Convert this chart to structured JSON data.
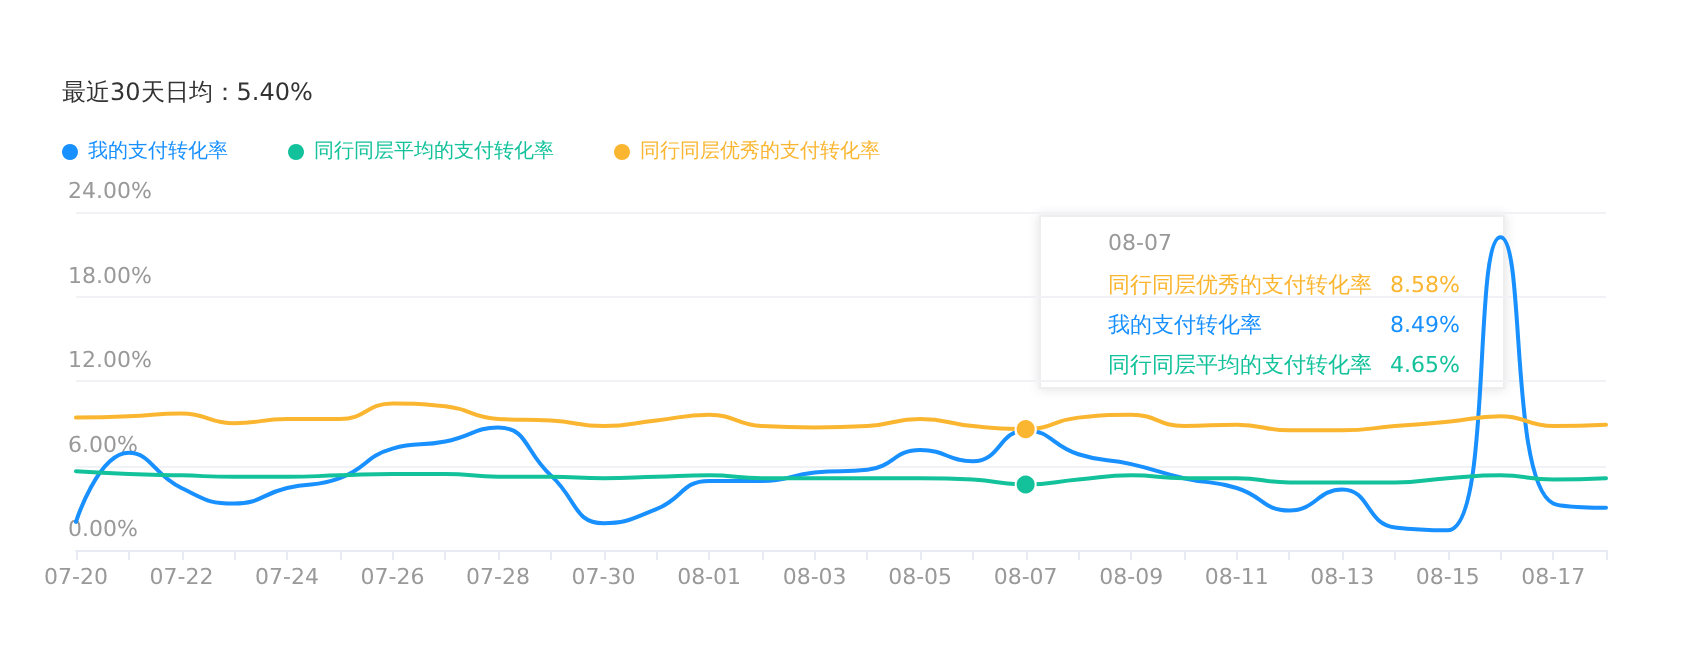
{
  "chart_data": {
    "type": "line",
    "title": "最近30天日均：5.40%",
    "categories": [
      "07-20",
      null,
      "07-22",
      null,
      "07-24",
      null,
      "07-26",
      null,
      "07-28",
      null,
      "07-30",
      null,
      "08-01",
      null,
      "08-03",
      null,
      "08-05",
      null,
      "08-07",
      null,
      "08-09",
      null,
      "08-11",
      null,
      "08-13",
      null,
      "08-15",
      null,
      "08-17",
      null
    ],
    "series": [
      {
        "name": "我的支付转化率",
        "color": "#1890ff",
        "values": [
          2.0,
          6.9,
          4.4,
          3.3,
          4.4,
          5.1,
          7.2,
          7.7,
          8.7,
          5.3,
          1.9,
          2.9,
          4.9,
          4.9,
          5.5,
          5.7,
          7.1,
          6.3,
          8.49,
          6.8,
          6.1,
          5.1,
          4.4,
          2.8,
          4.3,
          1.6,
          1.4,
          22.2,
          3.3,
          3.0
        ]
      },
      {
        "name": "同行同层平均的支付转化率",
        "color": "#13c29b",
        "values": [
          5.6,
          5.4,
          5.3,
          5.2,
          5.2,
          5.3,
          5.4,
          5.4,
          5.2,
          5.2,
          5.1,
          5.2,
          5.3,
          5.1,
          5.1,
          5.1,
          5.1,
          5.0,
          4.65,
          5.0,
          5.3,
          5.1,
          5.1,
          4.8,
          4.8,
          4.8,
          5.1,
          5.3,
          5.0,
          5.1
        ]
      },
      {
        "name": "同行同层优秀的支付转化率",
        "color": "#fbb631",
        "values": [
          9.4,
          9.5,
          9.7,
          9.0,
          9.3,
          9.3,
          10.4,
          10.2,
          9.3,
          9.2,
          8.8,
          9.2,
          9.6,
          8.8,
          8.7,
          8.8,
          9.3,
          8.8,
          8.58,
          9.4,
          9.6,
          8.8,
          8.9,
          8.5,
          8.5,
          8.8,
          9.1,
          9.5,
          8.8,
          8.9
        ]
      }
    ],
    "ylim": [
      0,
      24
    ],
    "yticks": [
      {
        "value": 0,
        "label": "0.00%"
      },
      {
        "value": 6,
        "label": "6.00%"
      },
      {
        "value": 12,
        "label": "12.00%"
      },
      {
        "value": 18,
        "label": "18.00%"
      },
      {
        "value": 24,
        "label": "24.00%"
      }
    ],
    "annotations": [
      "08-07",
      "8.58%",
      "8.49%",
      "4.65%"
    ],
    "grid": "y",
    "legend": "top left",
    "marker": "none",
    "line_style": "solid"
  }
}
